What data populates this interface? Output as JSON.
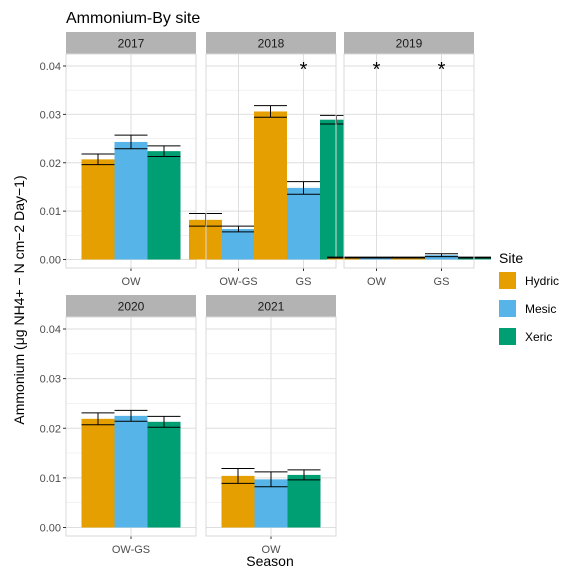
{
  "chart_data": {
    "type": "bar",
    "title": "Ammonium-By site",
    "xlabel": "Season",
    "ylabel": "Ammonium (μg NH4+ − N cm−2 Day−1)",
    "ylim": [
      0,
      0.042
    ],
    "yticks": [
      0.0,
      0.01,
      0.02,
      0.03,
      0.04
    ],
    "ytick_labels": [
      "0.00",
      "0.01",
      "0.02",
      "0.03",
      "0.04"
    ],
    "grid": true,
    "legend": {
      "title": "Site",
      "position": "right",
      "entries": [
        "Hydric",
        "Mesic",
        "Xeric"
      ]
    },
    "colors": {
      "Hydric": "#E69F00",
      "Mesic": "#56B4E9",
      "Xeric": "#009E73"
    },
    "significance_marker": "*",
    "panels": [
      {
        "year": "2017",
        "categories": [
          "OW"
        ],
        "series": [
          {
            "name": "Hydric",
            "values": [
              0.0207
            ],
            "errors": [
              0.0011
            ]
          },
          {
            "name": "Mesic",
            "values": [
              0.0243
            ],
            "errors": [
              0.0014
            ]
          },
          {
            "name": "Xeric",
            "values": [
              0.0224
            ],
            "errors": [
              0.0011
            ]
          }
        ],
        "significant": []
      },
      {
        "year": "2018",
        "categories": [
          "OW-GS",
          "GS"
        ],
        "series": [
          {
            "name": "Hydric",
            "values": [
              0.0082,
              0.0306
            ],
            "errors": [
              0.0013,
              0.0012
            ]
          },
          {
            "name": "Mesic",
            "values": [
              0.0063,
              0.0148
            ],
            "errors": [
              0.0006,
              0.0013
            ]
          },
          {
            "name": "Xeric",
            "values": [
              0.0063,
              0.0289
            ],
            "errors": [
              0.0002,
              0.0009
            ]
          }
        ],
        "significant": [
          "GS"
        ]
      },
      {
        "year": "2019",
        "categories": [
          "OW",
          "GS"
        ],
        "series": [
          {
            "name": "Hydric",
            "values": [
              0.0004,
              0.0004
            ],
            "errors": [
              0.0001,
              0.0001
            ]
          },
          {
            "name": "Mesic",
            "values": [
              0.0004,
              0.0009
            ],
            "errors": [
              0.0001,
              0.0003
            ]
          },
          {
            "name": "Xeric",
            "values": [
              0.0002,
              0.0004
            ],
            "errors": [
              0.0001,
              0.0001
            ]
          }
        ],
        "significant": [
          "OW",
          "GS"
        ]
      },
      {
        "year": "2020",
        "categories": [
          "OW-GS"
        ],
        "series": [
          {
            "name": "Hydric",
            "values": [
              0.0219
            ],
            "errors": [
              0.0012
            ]
          },
          {
            "name": "Mesic",
            "values": [
              0.0225
            ],
            "errors": [
              0.0011
            ]
          },
          {
            "name": "Xeric",
            "values": [
              0.0213
            ],
            "errors": [
              0.0011
            ]
          }
        ],
        "significant": []
      },
      {
        "year": "2021",
        "categories": [
          "OW"
        ],
        "series": [
          {
            "name": "Hydric",
            "values": [
              0.0104
            ],
            "errors": [
              0.0015
            ]
          },
          {
            "name": "Mesic",
            "values": [
              0.0097
            ],
            "errors": [
              0.0015
            ]
          },
          {
            "name": "Xeric",
            "values": [
              0.0106
            ],
            "errors": [
              0.001
            ]
          }
        ],
        "significant": []
      }
    ]
  }
}
